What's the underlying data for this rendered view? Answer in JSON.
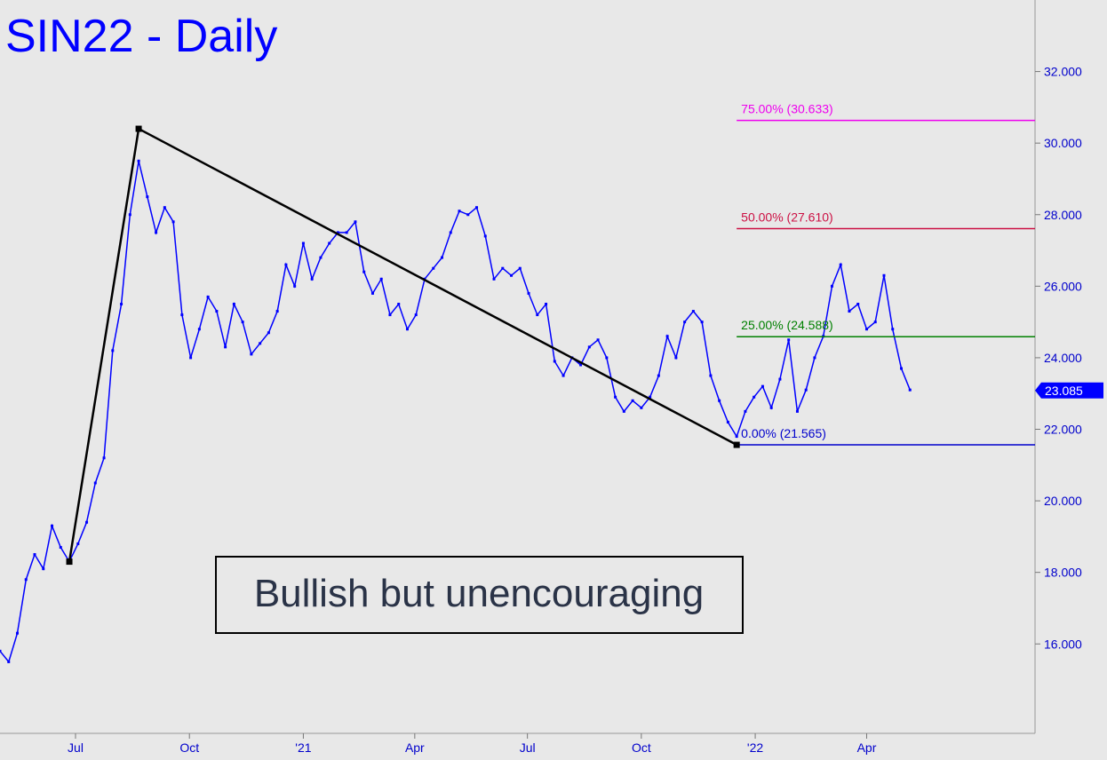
{
  "chart_data": {
    "type": "line",
    "title": "SIN22 - Daily",
    "annotation": "Bullish but unencouraging",
    "current_price": "23.085",
    "x_ticks": [
      {
        "label": "Jul",
        "date": "2020-07-01"
      },
      {
        "label": "Oct",
        "date": "2020-10-01"
      },
      {
        "label": "'21",
        "date": "2021-01-01"
      },
      {
        "label": "Apr",
        "date": "2021-04-01"
      },
      {
        "label": "Jul",
        "date": "2021-07-01"
      },
      {
        "label": "Oct",
        "date": "2021-10-01"
      },
      {
        "label": "'22",
        "date": "2022-01-01"
      },
      {
        "label": "Apr",
        "date": "2022-04-01"
      }
    ],
    "y_ticks": [
      "16.000",
      "18.000",
      "20.000",
      "22.000",
      "24.000",
      "26.000",
      "28.000",
      "30.000",
      "32.000"
    ],
    "ylim": [
      13.5,
      34.0
    ],
    "xlim": [
      "2020-05-01",
      "2022-08-15"
    ],
    "grid": false,
    "price_series": {
      "name": "",
      "color": "#0000ff",
      "points": [
        [
          "2020-05-01",
          15.8
        ],
        [
          "2020-05-08",
          15.5
        ],
        [
          "2020-05-15",
          16.3
        ],
        [
          "2020-05-22",
          17.8
        ],
        [
          "2020-05-29",
          18.5
        ],
        [
          "2020-06-05",
          18.1
        ],
        [
          "2020-06-12",
          19.3
        ],
        [
          "2020-06-19",
          18.7
        ],
        [
          "2020-06-26",
          18.3
        ],
        [
          "2020-07-03",
          18.8
        ],
        [
          "2020-07-10",
          19.4
        ],
        [
          "2020-07-17",
          20.5
        ],
        [
          "2020-07-24",
          21.2
        ],
        [
          "2020-07-31",
          24.2
        ],
        [
          "2020-08-07",
          25.5
        ],
        [
          "2020-08-14",
          28.0
        ],
        [
          "2020-08-21",
          29.5
        ],
        [
          "2020-08-28",
          28.5
        ],
        [
          "2020-09-04",
          27.5
        ],
        [
          "2020-09-11",
          28.2
        ],
        [
          "2020-09-18",
          27.8
        ],
        [
          "2020-09-25",
          25.2
        ],
        [
          "2020-10-02",
          24.0
        ],
        [
          "2020-10-09",
          24.8
        ],
        [
          "2020-10-16",
          25.7
        ],
        [
          "2020-10-23",
          25.3
        ],
        [
          "2020-10-30",
          24.3
        ],
        [
          "2020-11-06",
          25.5
        ],
        [
          "2020-11-13",
          25.0
        ],
        [
          "2020-11-20",
          24.1
        ],
        [
          "2020-11-27",
          24.4
        ],
        [
          "2020-12-04",
          24.7
        ],
        [
          "2020-12-11",
          25.3
        ],
        [
          "2020-12-18",
          26.6
        ],
        [
          "2020-12-25",
          26.0
        ],
        [
          "2021-01-01",
          27.2
        ],
        [
          "2021-01-08",
          26.2
        ],
        [
          "2021-01-15",
          26.8
        ],
        [
          "2021-01-22",
          27.2
        ],
        [
          "2021-01-29",
          27.5
        ],
        [
          "2021-02-05",
          27.5
        ],
        [
          "2021-02-12",
          27.8
        ],
        [
          "2021-02-19",
          26.4
        ],
        [
          "2021-02-26",
          25.8
        ],
        [
          "2021-03-05",
          26.2
        ],
        [
          "2021-03-12",
          25.2
        ],
        [
          "2021-03-19",
          25.5
        ],
        [
          "2021-03-26",
          24.8
        ],
        [
          "2021-04-02",
          25.2
        ],
        [
          "2021-04-09",
          26.2
        ],
        [
          "2021-04-16",
          26.5
        ],
        [
          "2021-04-23",
          26.8
        ],
        [
          "2021-04-30",
          27.5
        ],
        [
          "2021-05-07",
          28.1
        ],
        [
          "2021-05-14",
          28.0
        ],
        [
          "2021-05-21",
          28.2
        ],
        [
          "2021-05-28",
          27.4
        ],
        [
          "2021-06-04",
          26.2
        ],
        [
          "2021-06-11",
          26.5
        ],
        [
          "2021-06-18",
          26.3
        ],
        [
          "2021-06-25",
          26.5
        ],
        [
          "2021-07-02",
          25.8
        ],
        [
          "2021-07-09",
          25.2
        ],
        [
          "2021-07-16",
          25.5
        ],
        [
          "2021-07-23",
          23.9
        ],
        [
          "2021-07-30",
          23.5
        ],
        [
          "2021-08-06",
          24.0
        ],
        [
          "2021-08-13",
          23.8
        ],
        [
          "2021-08-20",
          24.3
        ],
        [
          "2021-08-27",
          24.5
        ],
        [
          "2021-09-03",
          24.0
        ],
        [
          "2021-09-10",
          22.9
        ],
        [
          "2021-09-17",
          22.5
        ],
        [
          "2021-09-24",
          22.8
        ],
        [
          "2021-10-01",
          22.6
        ],
        [
          "2021-10-08",
          22.9
        ],
        [
          "2021-10-15",
          23.5
        ],
        [
          "2021-10-22",
          24.6
        ],
        [
          "2021-10-29",
          24.0
        ],
        [
          "2021-11-05",
          25.0
        ],
        [
          "2021-11-12",
          25.3
        ],
        [
          "2021-11-19",
          25.0
        ],
        [
          "2021-11-26",
          23.5
        ],
        [
          "2021-12-03",
          22.8
        ],
        [
          "2021-12-10",
          22.2
        ],
        [
          "2021-12-17",
          21.8
        ],
        [
          "2021-12-24",
          22.5
        ],
        [
          "2021-12-31",
          22.9
        ],
        [
          "2022-01-07",
          23.2
        ],
        [
          "2022-01-14",
          22.6
        ],
        [
          "2022-01-21",
          23.4
        ],
        [
          "2022-01-28",
          24.5
        ],
        [
          "2022-02-04",
          22.5
        ],
        [
          "2022-02-11",
          23.1
        ],
        [
          "2022-02-18",
          24.0
        ],
        [
          "2022-02-25",
          24.6
        ],
        [
          "2022-03-04",
          26.0
        ],
        [
          "2022-03-11",
          26.6
        ],
        [
          "2022-03-18",
          25.3
        ],
        [
          "2022-03-25",
          25.5
        ],
        [
          "2022-04-01",
          24.8
        ],
        [
          "2022-04-08",
          25.0
        ],
        [
          "2022-04-15",
          26.3
        ],
        [
          "2022-04-22",
          24.8
        ],
        [
          "2022-04-29",
          23.7
        ],
        [
          "2022-05-06",
          23.1
        ]
      ]
    },
    "trend_line": {
      "color": "#000000",
      "points": [
        [
          "2020-06-26",
          18.3
        ],
        [
          "2020-08-21",
          30.4
        ],
        [
          "2021-12-17",
          21.565
        ]
      ]
    },
    "fib_levels": [
      {
        "label": "0.00% (21.565)",
        "value": 21.565,
        "color": "#0000cc"
      },
      {
        "label": "25.00% (24.588)",
        "value": 24.588,
        "color": "#008000"
      },
      {
        "label": "50.00% (27.610)",
        "value": 27.61,
        "color": "#cc1144"
      },
      {
        "label": "75.00% (30.633)",
        "value": 30.633,
        "color": "#ee00ee"
      }
    ],
    "fib_start_date": "2021-12-17"
  }
}
